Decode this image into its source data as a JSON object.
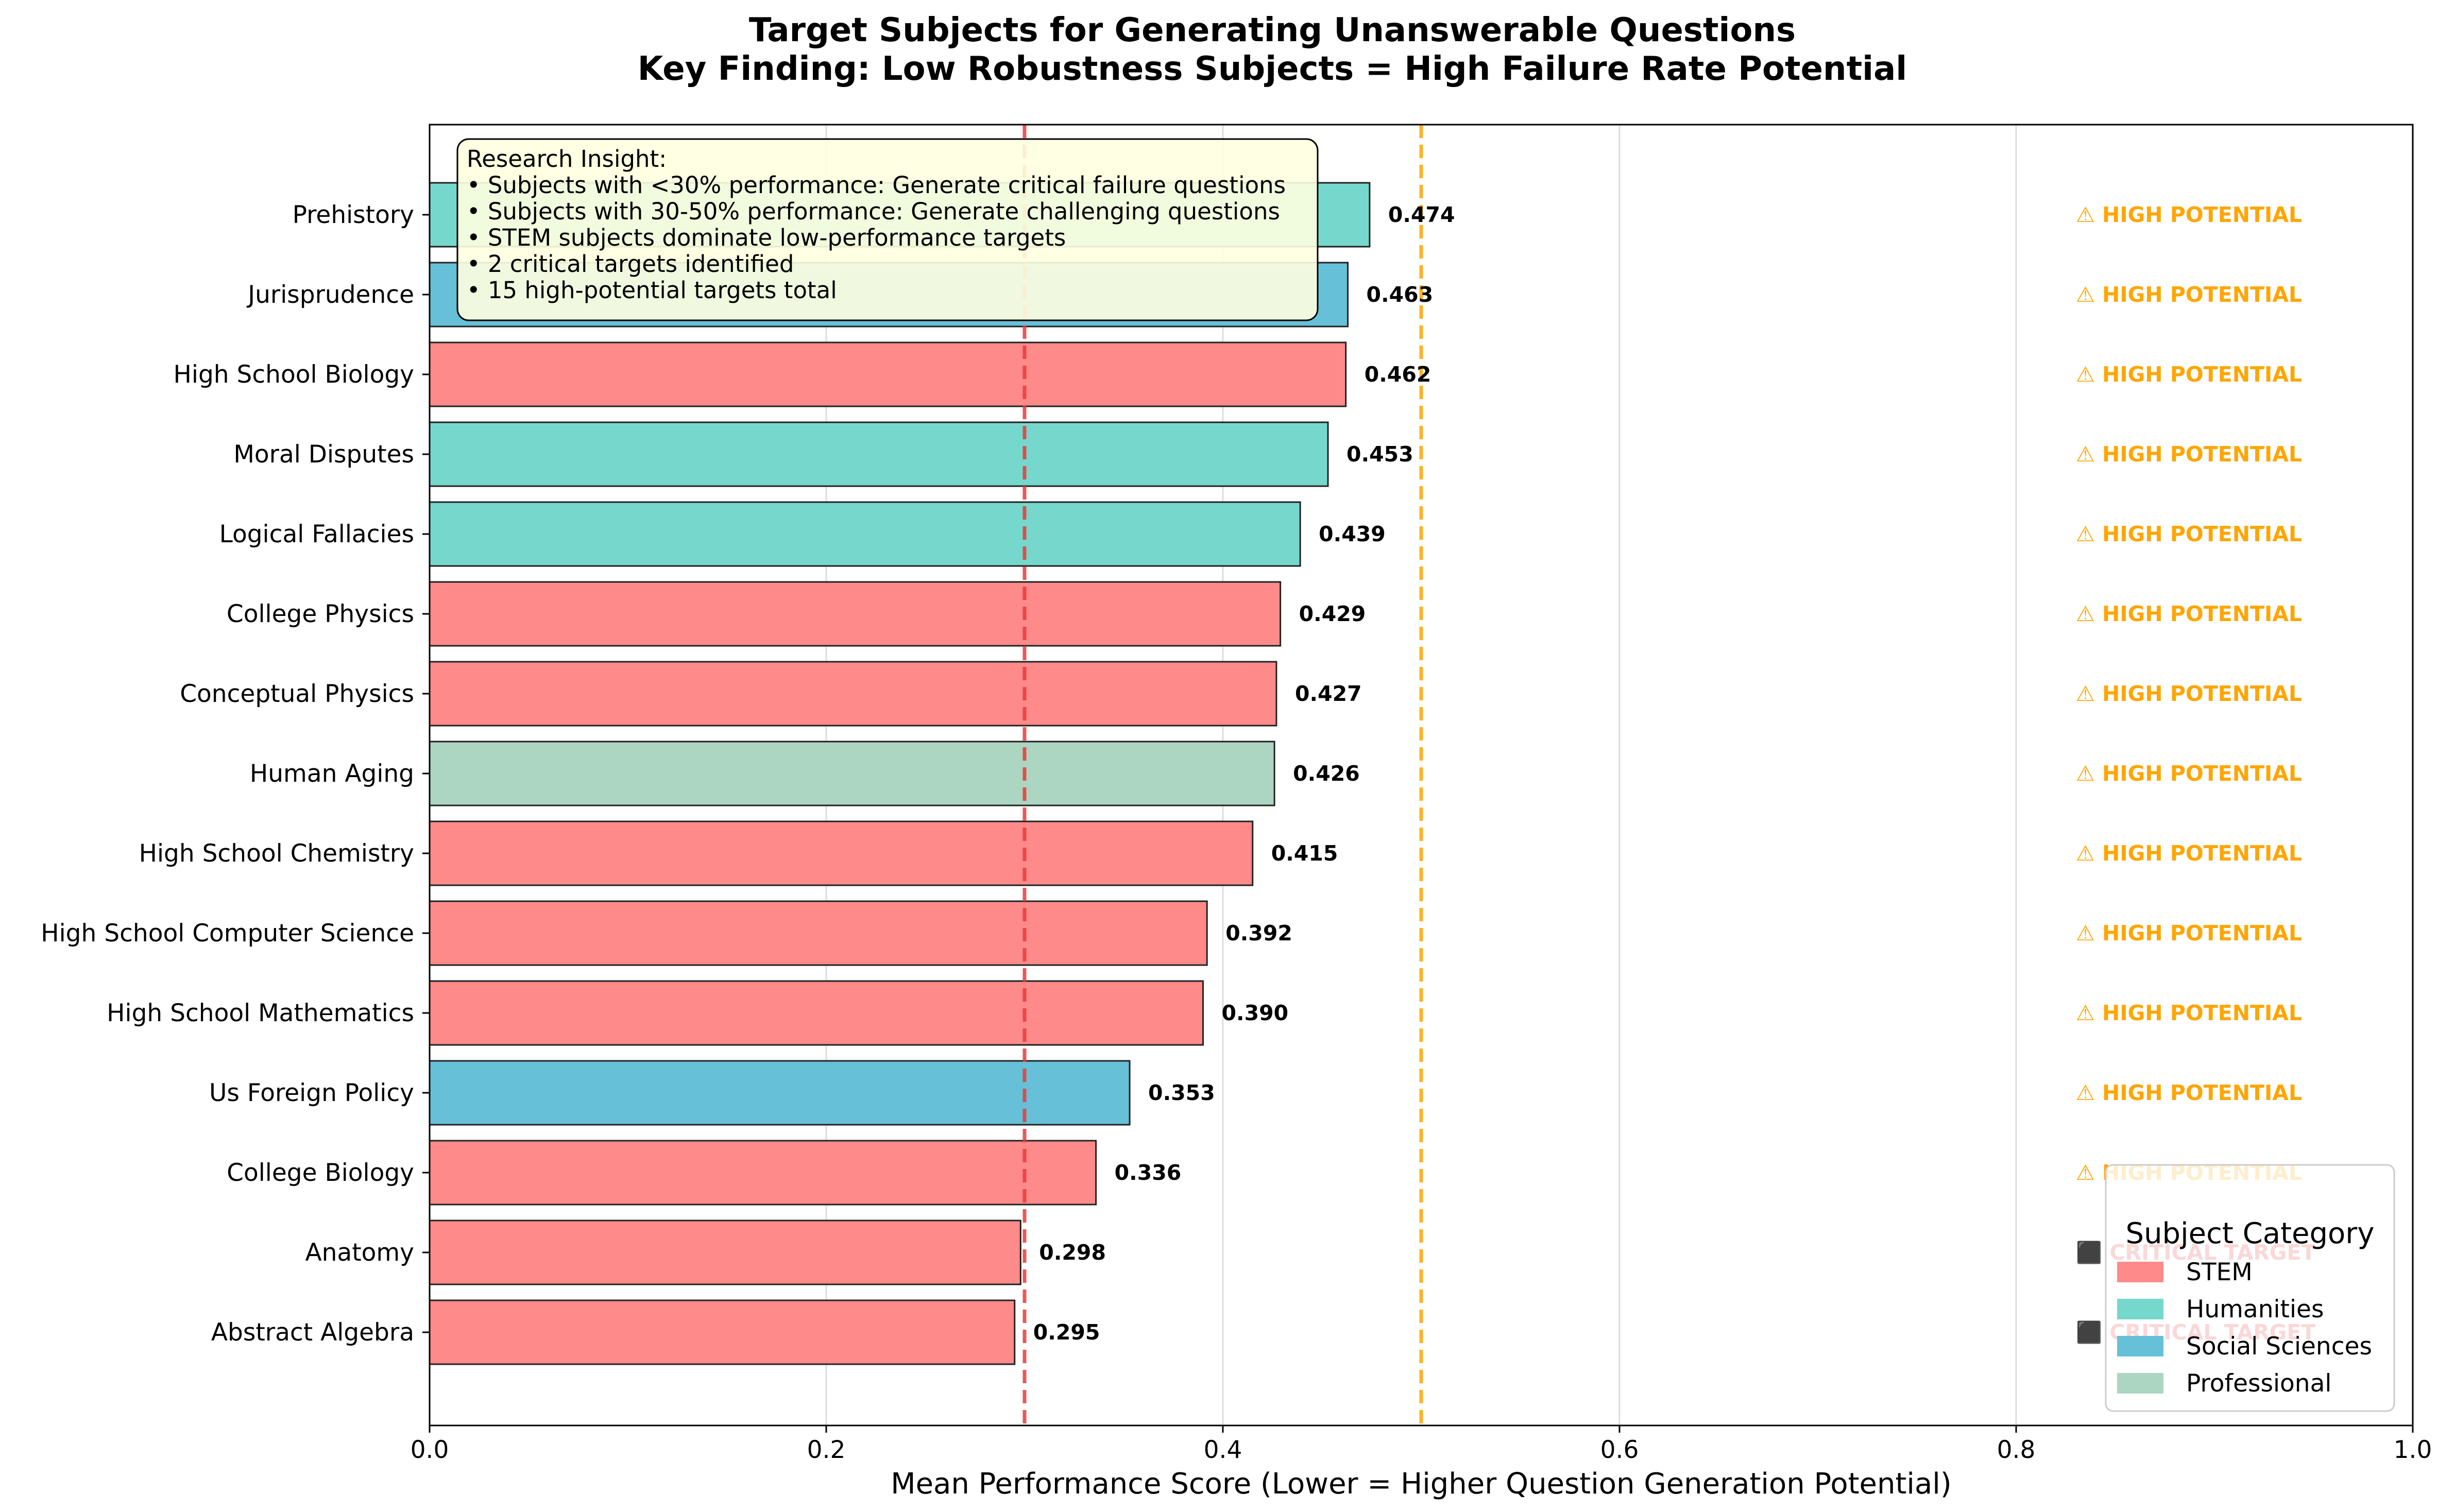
{
  "chart_data": {
    "type": "bar",
    "orientation": "horizontal",
    "title": [
      "Target Subjects for Generating Unanswerable Questions",
      "Key Finding: Low Robustness Subjects = High Failure Rate Potential"
    ],
    "xlabel": "Mean Performance Score (Lower = Higher Question Generation Potential)",
    "ylabel": "",
    "xlim": [
      0,
      1.0
    ],
    "xticks": [
      "0.0",
      "0.2",
      "0.4",
      "0.6",
      "0.8",
      "1.0"
    ],
    "grid": "vertical",
    "reference_lines": [
      {
        "x": 0.3,
        "color": "#e83a3a",
        "style": "dashed"
      },
      {
        "x": 0.5,
        "color": "#ffa500",
        "style": "dashed"
      }
    ],
    "categories": [
      "Prehistory",
      "Jurisprudence",
      "High School Biology",
      "Moral Disputes",
      "Logical Fallacies",
      "College Physics",
      "Conceptual Physics",
      "Human Aging",
      "High School Chemistry",
      "High School Computer Science",
      "High School Mathematics",
      "Us Foreign Policy",
      "College Biology",
      "Anatomy",
      "Abstract Algebra"
    ],
    "values": [
      0.474,
      0.463,
      0.462,
      0.453,
      0.439,
      0.429,
      0.427,
      0.426,
      0.415,
      0.392,
      0.39,
      0.353,
      0.336,
      0.298,
      0.295
    ],
    "value_labels": [
      "0.474",
      "0.463",
      "0.462",
      "0.453",
      "0.439",
      "0.429",
      "0.427",
      "0.426",
      "0.415",
      "0.392",
      "0.390",
      "0.353",
      "0.336",
      "0.298",
      "0.295"
    ],
    "bar_groups": [
      "Humanities",
      "Social Sciences",
      "STEM",
      "Humanities",
      "Humanities",
      "STEM",
      "STEM",
      "Professional",
      "STEM",
      "STEM",
      "STEM",
      "Social Sciences",
      "STEM",
      "STEM",
      "STEM"
    ],
    "flags": [
      "⚠ HIGH POTENTIAL",
      "⚠ HIGH POTENTIAL",
      "⚠ HIGH POTENTIAL",
      "⚠ HIGH POTENTIAL",
      "⚠ HIGH POTENTIAL",
      "⚠ HIGH POTENTIAL",
      "⚠ HIGH POTENTIAL",
      "⚠ HIGH POTENTIAL",
      "⚠ HIGH POTENTIAL",
      "⚠ HIGH POTENTIAL",
      "⚠ HIGH POTENTIAL",
      "⚠ HIGH POTENTIAL",
      "⚠ HIGH POTENTIAL",
      "⬛ CRITICAL TARGET",
      "⬛ CRITICAL TARGET"
    ],
    "flag_levels": [
      "high",
      "high",
      "high",
      "high",
      "high",
      "high",
      "high",
      "high",
      "high",
      "high",
      "high",
      "high",
      "high",
      "critical",
      "critical"
    ],
    "legend": {
      "title": "Subject Category",
      "placement": "lower-right",
      "items": [
        {
          "label": "STEM",
          "color": "#ff8a8a"
        },
        {
          "label": "Humanities",
          "color": "#76d8cd"
        },
        {
          "label": "Social Sciences",
          "color": "#66c0d8"
        },
        {
          "label": "Professional",
          "color": "#acd6c2"
        }
      ]
    },
    "annotation": {
      "placement": "top-left",
      "lines": [
        "Research Insight:",
        "• Subjects with <30% performance: Generate critical failure questions",
        "• Subjects with 30-50% performance: Generate challenging questions",
        "• STEM subjects dominate low-performance targets",
        "• 2 critical targets identified",
        "• 15 high-potential targets total"
      ]
    }
  },
  "colors": {
    "STEM": "#ff8a8a",
    "Humanities": "#76d8cd",
    "Social Sciences": "#66c0d8",
    "Professional": "#acd6c2",
    "high": "#ffa500",
    "critical": "#e83a3a"
  }
}
